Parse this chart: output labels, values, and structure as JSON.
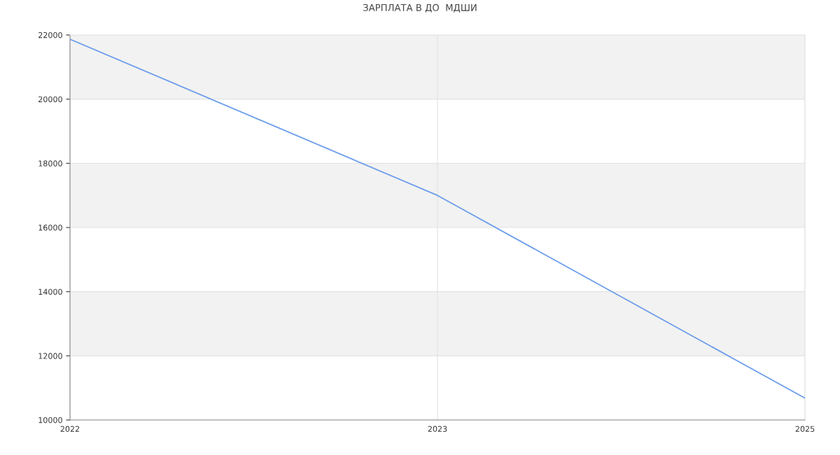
{
  "chart_data": {
    "type": "line",
    "title": "ЗАРПЛАТА В ДО  МДШИ",
    "categories": [
      "2022",
      "2023",
      "2025"
    ],
    "series": [
      {
        "color": "#6d9eeb",
        "values": [
          21870,
          17000,
          10680
        ]
      }
    ],
    "ylim": [
      10000,
      22000
    ],
    "yticks": [
      10000,
      12000,
      14000,
      16000,
      18000,
      20000,
      22000
    ],
    "bands": [
      {
        "axis": "y",
        "from": 12000,
        "to": 14000,
        "color": "#f2f2f2"
      },
      {
        "axis": "y",
        "from": 16000,
        "to": 18000,
        "color": "#f2f2f2"
      },
      {
        "axis": "y",
        "from": 20000,
        "to": 22000,
        "color": "#f2f2f2"
      }
    ],
    "grid": true,
    "marker": "none",
    "line_style": "solid"
  }
}
